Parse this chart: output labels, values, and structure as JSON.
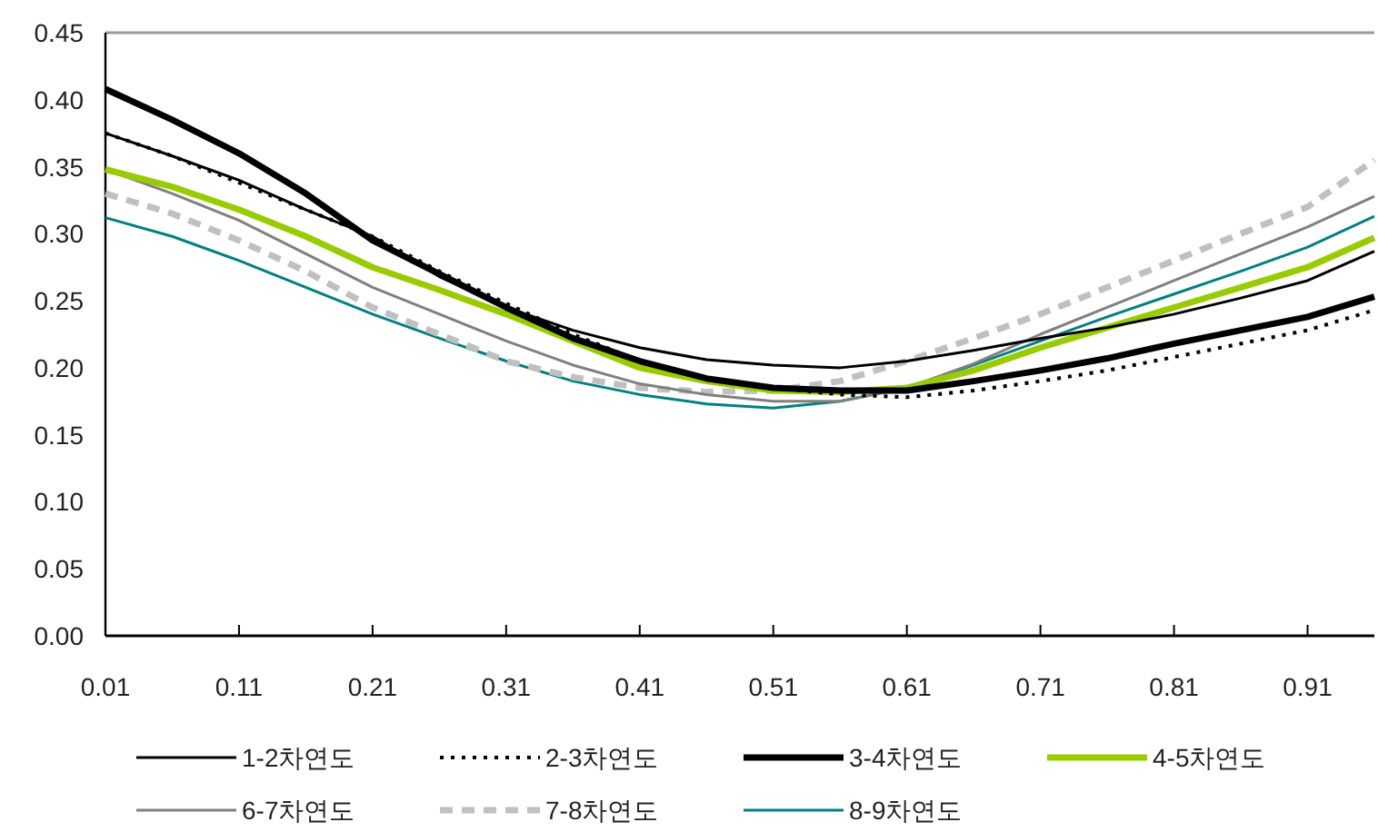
{
  "chart_data": {
    "type": "line",
    "x": [
      0.01,
      0.06,
      0.11,
      0.16,
      0.21,
      0.26,
      0.31,
      0.36,
      0.41,
      0.46,
      0.51,
      0.56,
      0.61,
      0.66,
      0.71,
      0.76,
      0.81,
      0.86,
      0.91,
      0.96
    ],
    "xlim": [
      0.01,
      0.96
    ],
    "xticks": [
      0.01,
      0.11,
      0.21,
      0.31,
      0.41,
      0.51,
      0.61,
      0.71,
      0.81,
      0.91
    ],
    "ylim": [
      0,
      0.45
    ],
    "yticks": [
      {
        "value": 0,
        "label": "0.00"
      },
      {
        "value": 0.05,
        "label": "0.05"
      },
      {
        "value": 0.1,
        "label": "0.10"
      },
      {
        "value": 0.15,
        "label": "0.15"
      },
      {
        "value": 0.2,
        "label": "0.20"
      },
      {
        "value": 0.25,
        "label": "0.25"
      },
      {
        "value": 0.3,
        "label": "0.30"
      },
      {
        "value": 0.35,
        "label": "0.35"
      },
      {
        "value": 0.4,
        "label": "0.40"
      },
      {
        "value": 0.45,
        "label": "0.45"
      }
    ],
    "grid": false,
    "legend": "bottom",
    "marker": "none",
    "series": [
      {
        "name": "1-2차연도",
        "color": "#000000",
        "line_style": "solid",
        "values": [
          0.375,
          0.358,
          0.34,
          0.318,
          0.298,
          0.268,
          0.245,
          0.228,
          0.215,
          0.206,
          0.202,
          0.2,
          0.205,
          0.213,
          0.222,
          0.23,
          0.24,
          0.252,
          0.265,
          0.287
        ]
      },
      {
        "name": "2-3차연도",
        "color": "#000000",
        "line_style": "dotted",
        "values": [
          0.375,
          0.358,
          0.338,
          0.318,
          0.298,
          0.272,
          0.248,
          0.225,
          0.205,
          0.192,
          0.185,
          0.18,
          0.178,
          0.183,
          0.19,
          0.198,
          0.208,
          0.218,
          0.228,
          0.243
        ]
      },
      {
        "name": "3-4차연도",
        "color": "#000000",
        "line_style": "solid",
        "values": [
          0.408,
          0.385,
          0.36,
          0.33,
          0.295,
          0.27,
          0.245,
          0.222,
          0.205,
          0.192,
          0.185,
          0.183,
          0.183,
          0.19,
          0.198,
          0.207,
          0.218,
          0.228,
          0.238,
          0.253
        ]
      },
      {
        "name": "4-5차연도",
        "color": "#99cc00",
        "line_style": "solid",
        "values": [
          0.348,
          0.335,
          0.318,
          0.298,
          0.275,
          0.258,
          0.24,
          0.22,
          0.2,
          0.19,
          0.183,
          0.182,
          0.185,
          0.198,
          0.215,
          0.23,
          0.245,
          0.26,
          0.275,
          0.297
        ]
      },
      {
        "name": "6-7차연도",
        "color": "#808080",
        "line_style": "solid",
        "values": [
          0.348,
          0.33,
          0.31,
          0.285,
          0.26,
          0.24,
          0.22,
          0.202,
          0.188,
          0.18,
          0.175,
          0.175,
          0.185,
          0.203,
          0.225,
          0.245,
          0.265,
          0.285,
          0.305,
          0.328
        ]
      },
      {
        "name": "7-8차연도",
        "color": "#c0c0c0",
        "line_style": "dashed",
        "values": [
          0.33,
          0.315,
          0.295,
          0.272,
          0.245,
          0.225,
          0.205,
          0.193,
          0.185,
          0.182,
          0.183,
          0.19,
          0.205,
          0.222,
          0.24,
          0.26,
          0.28,
          0.3,
          0.32,
          0.355
        ]
      },
      {
        "name": "8-9차연도",
        "color": "#008080",
        "line_style": "solid",
        "values": [
          0.312,
          0.298,
          0.28,
          0.26,
          0.24,
          0.222,
          0.205,
          0.19,
          0.18,
          0.173,
          0.17,
          0.175,
          0.185,
          0.202,
          0.22,
          0.238,
          0.255,
          0.272,
          0.29,
          0.313
        ]
      }
    ]
  }
}
